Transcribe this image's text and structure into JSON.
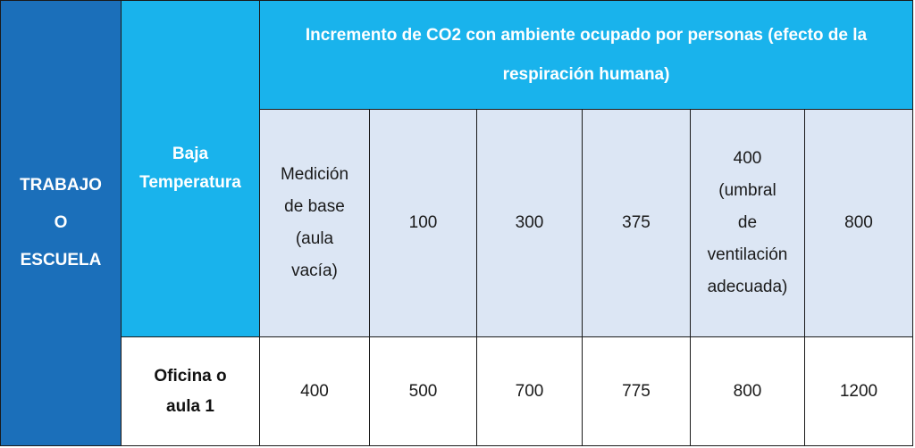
{
  "table": {
    "side_label": "TRABAJO\nO\nESCUELA",
    "condition_label": "Baja\nTemperatura",
    "header_title": "Incremento de CO2 con ambiente ocupado por personas (efecto de la respiración humana)",
    "columns": [
      "Medición\nde base\n(aula\nvacía)",
      "100",
      "300",
      "375",
      "400\n(umbral\nde\nventilación\nadecuada)",
      "800"
    ],
    "row_label": "Oficina o\naula 1",
    "row_values": [
      "400",
      "500",
      "700",
      "775",
      "800",
      "1200"
    ]
  },
  "colors": {
    "side_bg": "#1b6fba",
    "header_bg": "#19b3ec",
    "cell_bg": "#dce6f4"
  }
}
